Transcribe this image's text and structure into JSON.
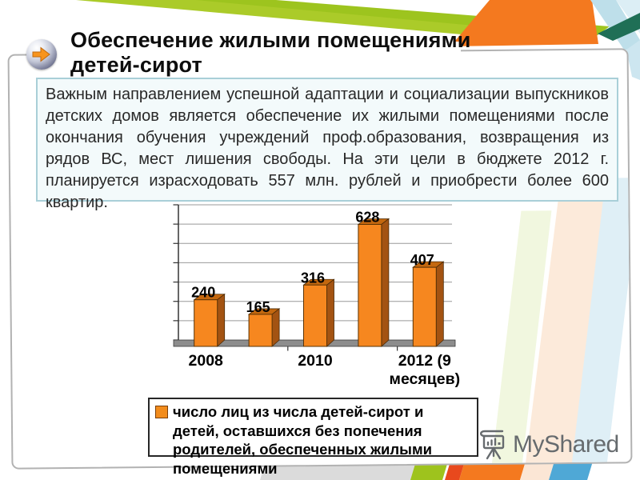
{
  "slide": {
    "title_line1": "Обеспечение жилыми помещениями",
    "title_line2": "детей-сирот",
    "body": "Важным направлением успешной адаптации и социализации выпускников детских домов является обеспечение их жилыми помещениями после окончания обучения учреждений проф.образования, возвращения из рядов ВС, мест лишения свободы. На эти цели в бюджете 2012 г. планируется израсходовать 557 млн. рублей и приобрести более 600 квартир."
  },
  "chart_data": {
    "type": "bar",
    "style": "3d-column",
    "title": "",
    "categories": [
      "2008",
      "",
      "2010",
      "",
      "2012 (9 месяцев)"
    ],
    "values": [
      240,
      165,
      316,
      628,
      407
    ],
    "tick_labels": [
      {
        "index": 0,
        "lines": [
          "2008"
        ]
      },
      {
        "index": 2,
        "lines": [
          "2010"
        ]
      },
      {
        "index": 4,
        "lines": [
          "2012 (9",
          "месяцев)"
        ]
      }
    ],
    "ylim": [
      0,
      700
    ],
    "gridline_step": 100,
    "grid": true,
    "value_labels": true,
    "bar_color": "#F6871F",
    "bar_side_color": "#A35312",
    "bar_top_color": "#C4680F",
    "floor_color": "#8D8D8D",
    "legend": "число лиц из числа детей-сирот и детей, оставшихся без попечения родителей, обеспеченных жилыми помещениями",
    "legend_position": "bottom"
  },
  "watermark": {
    "brand": "MyShared"
  }
}
